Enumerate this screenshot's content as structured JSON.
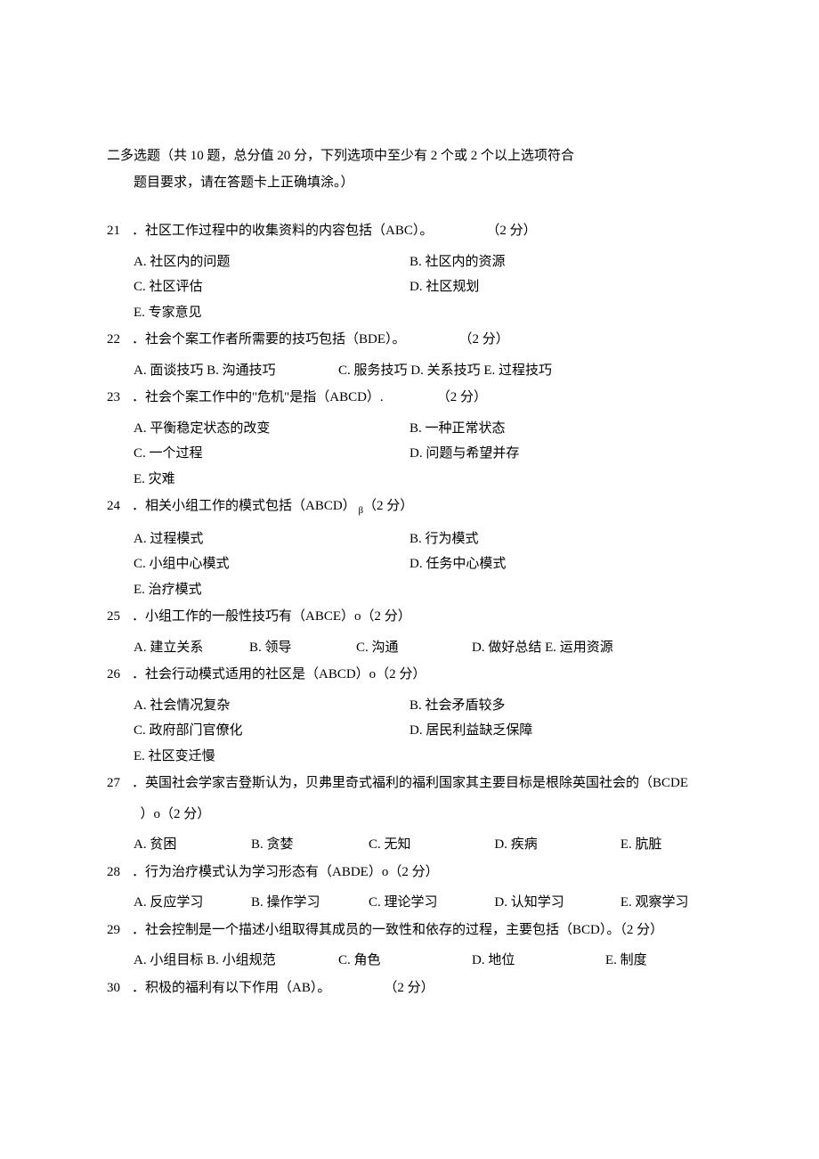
{
  "section": {
    "line1": "二多选题（共 10 题，总分值 20 分，下列选项中至少有 2 个或 2 个以上选项符合",
    "line2": "题目要求，请在答题卡上正确填涂。）"
  },
  "questions": [
    {
      "num": "21",
      "stem": "．社区工作过程中的收集资料的内容包括（ABC）。",
      "points": "（2 分）",
      "layout": "2col-extra",
      "options": [
        {
          "k": "A",
          "t": "社区内的问题"
        },
        {
          "k": "B",
          "t": "社区内的资源"
        },
        {
          "k": "C",
          "t": "社区评估"
        },
        {
          "k": "D",
          "t": "社区规划"
        },
        {
          "k": "E",
          "t": "专家意见"
        }
      ]
    },
    {
      "num": "22",
      "stem": "．社会个案工作者所需要的技巧包括（BDE）。",
      "points": "（2 分）",
      "layout": "inline-de",
      "options": [
        {
          "k": "A",
          "t": "面谈技巧"
        },
        {
          "k": "B",
          "t": "沟通技巧"
        },
        {
          "k": "C",
          "t": "服务技巧"
        },
        {
          "k": "D",
          "t": "关系技巧"
        },
        {
          "k": "E",
          "t": "过程技巧"
        }
      ]
    },
    {
      "num": "23",
      "stem": "．社会个案工作中的\"危机\"是指（ABCD）.",
      "points": "（2 分）",
      "layout": "2col-extra",
      "options": [
        {
          "k": "A",
          "t": "平衡稳定状态的改变"
        },
        {
          "k": "B",
          "t": "一种正常状态"
        },
        {
          "k": "C",
          "t": "一个过程"
        },
        {
          "k": "D",
          "t": "问题与希望并存"
        },
        {
          "k": "E",
          "t": "灾难"
        }
      ]
    },
    {
      "num": "24",
      "stem": "．相关小组工作的模式包括（ABCD）",
      "stem_suffix": "β",
      "points": "（2 分）",
      "layout": "2col-extra",
      "points_pos": "after",
      "options": [
        {
          "k": "A",
          "t": "过程模式"
        },
        {
          "k": "B",
          "t": "行为模式"
        },
        {
          "k": "C",
          "t": "小组中心模式"
        },
        {
          "k": "D",
          "t": "任务中心模式"
        },
        {
          "k": "E",
          "t": "治疗模式"
        }
      ]
    },
    {
      "num": "25",
      "stem": "．小组工作的一般性技巧有（ABCE）o（2 分）",
      "points": "",
      "layout": "five",
      "options": [
        {
          "k": "A",
          "t": "建立关系"
        },
        {
          "k": "B",
          "t": "领导"
        },
        {
          "k": "C",
          "t": "沟通"
        },
        {
          "k": "D",
          "t": "做好总结"
        },
        {
          "k": "E",
          "t": "运用资源"
        }
      ]
    },
    {
      "num": "26",
      "stem": "．社会行动模式适用的社区是（ABCD）o（2 分）",
      "points": "",
      "layout": "2col-extra",
      "options": [
        {
          "k": "A",
          "t": "社会情况复杂"
        },
        {
          "k": "B",
          "t": "社会矛盾较多"
        },
        {
          "k": "C",
          "t": "政府部门官僚化"
        },
        {
          "k": "D",
          "t": "居民利益缺乏保障"
        },
        {
          "k": "E",
          "t": "社区变迁慢"
        }
      ]
    },
    {
      "num": "27",
      "stem": "．英国社会学家吉登斯认为，贝弗里奇式福利的福利国家其主要目标是根除英国社会的（BCDE",
      "stem_cont": "）o（2 分）",
      "points": "",
      "layout": "five-wide",
      "options": [
        {
          "k": "A",
          "t": "贫困"
        },
        {
          "k": "B",
          "t": "贪婪"
        },
        {
          "k": "C",
          "t": "无知"
        },
        {
          "k": "D",
          "t": "疾病"
        },
        {
          "k": "E",
          "t": "肮脏"
        }
      ]
    },
    {
      "num": "28",
      "stem": "．行为治疗模式认为学习形态有（ABDE）o（2 分）",
      "points": "",
      "layout": "five-wide",
      "options": [
        {
          "k": "A",
          "t": "反应学习"
        },
        {
          "k": "B",
          "t": "操作学习"
        },
        {
          "k": "C",
          "t": "理论学习"
        },
        {
          "k": "D",
          "t": "认知学习"
        },
        {
          "k": "E",
          "t": "观察学习"
        }
      ]
    },
    {
      "num": "29",
      "stem": "．社会控制是一个描述小组取得其成员的一致性和依存的过程，主要包括（BCD）。（2 分）",
      "points": "",
      "layout": "five-ab",
      "options": [
        {
          "k": "A",
          "t": "小组目标"
        },
        {
          "k": "B",
          "t": "小组规范"
        },
        {
          "k": "C",
          "t": "角色"
        },
        {
          "k": "D",
          "t": "地位"
        },
        {
          "k": "E",
          "t": "制度"
        }
      ]
    },
    {
      "num": "30",
      "stem": "．积极的福利有以下作用（AB）。",
      "points": "（2 分）",
      "layout": "none",
      "options": []
    }
  ]
}
